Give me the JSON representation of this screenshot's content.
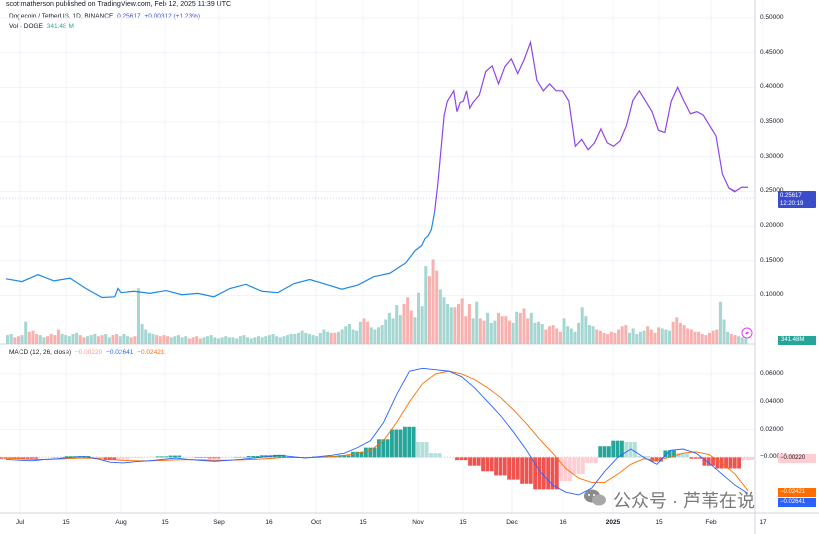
{
  "header": {
    "publisher_line": "scottmatherson published on TradingView.com, Feb 12, 2025 11:39 UTC"
  },
  "legend": {
    "symbol": "Dogecoin / TetherUS, 1D, BINANCE",
    "last": "0.25617",
    "change": "+0.00312 (+1.23%)",
    "volume_label": "Vol · DOGE",
    "volume_value": "341.48 M",
    "macd_label": "MACD (12, 26, close)",
    "macd_hist": "−0.00220",
    "macd_line": "−0.02641",
    "macd_signal": "−0.02421"
  },
  "price_tag": {
    "price": "0.25617",
    "countdown": "12:20:19"
  },
  "volume_tag": "341.48M",
  "macd_tags": {
    "hist": "−0.00220",
    "signal": "−0.02421",
    "macd": "−0.02641"
  },
  "watermark": {
    "text": "公众号 · 芦苇在说",
    "icon": "wechat-icon"
  },
  "colors": {
    "price_up": "#2962ff",
    "price_line_late": "#8f45e8",
    "vol_up": "#26a69a",
    "vol_down": "#ef5350",
    "macd_line": "#2962ff",
    "signal_line": "#ff6d00",
    "hist_up": "#26a69a",
    "hist_down": "#ef5350"
  },
  "chart_data": [
    {
      "type": "line",
      "title": "Dogecoin / TetherUS, 1D, BINANCE",
      "x_tick_labels": [
        "Jul",
        "15",
        "Aug",
        "15",
        "Sep",
        "16",
        "Oct",
        "15",
        "Nov",
        "15",
        "Dec",
        "16",
        "2025",
        "15",
        "Feb",
        "17"
      ],
      "y_tick_labels": [
        "0.10000",
        "0.15000",
        "0.20000",
        "0.25000",
        "0.30000",
        "0.35000",
        "0.40000",
        "0.45000",
        "0.50000"
      ],
      "ylim": [
        0.03,
        0.5
      ],
      "x": [
        0,
        5,
        10,
        15,
        20,
        25,
        30,
        34,
        35,
        36,
        40,
        45,
        50,
        55,
        60,
        65,
        70,
        75,
        80,
        85,
        90,
        95,
        100,
        105,
        110,
        115,
        120,
        125,
        128,
        130,
        131,
        132,
        133,
        134,
        135,
        136,
        137,
        138,
        140,
        141,
        142,
        143,
        144,
        145,
        146,
        148,
        150,
        152,
        154,
        156,
        158,
        160,
        162,
        164,
        166,
        168,
        170,
        172,
        174,
        176,
        178,
        180,
        182,
        184,
        186,
        188,
        190,
        192,
        194,
        196,
        198,
        200,
        202,
        204,
        206,
        208,
        210,
        212,
        214,
        216,
        218,
        220,
        222,
        224,
        226,
        228,
        226,
        228,
        230,
        232
      ],
      "values": [
        0.124,
        0.12,
        0.13,
        0.121,
        0.125,
        0.11,
        0.097,
        0.098,
        0.11,
        0.104,
        0.106,
        0.103,
        0.107,
        0.101,
        0.103,
        0.098,
        0.11,
        0.116,
        0.106,
        0.104,
        0.117,
        0.123,
        0.116,
        0.109,
        0.115,
        0.127,
        0.132,
        0.147,
        0.165,
        0.172,
        0.182,
        0.186,
        0.195,
        0.22,
        0.26,
        0.31,
        0.36,
        0.38,
        0.395,
        0.365,
        0.378,
        0.38,
        0.395,
        0.37,
        0.378,
        0.389,
        0.423,
        0.431,
        0.405,
        0.43,
        0.441,
        0.42,
        0.44,
        0.465,
        0.41,
        0.395,
        0.405,
        0.395,
        0.395,
        0.38,
        0.315,
        0.325,
        0.31,
        0.32,
        0.34,
        0.32,
        0.315,
        0.323,
        0.345,
        0.381,
        0.395,
        0.38,
        0.365,
        0.338,
        0.335,
        0.38,
        0.4,
        0.38,
        0.362,
        0.365,
        0.36,
        0.345,
        0.33,
        0.275,
        0.255,
        0.249,
        0.255,
        0.25,
        0.256,
        0.256
      ]
    },
    {
      "type": "bar",
      "title": "Vol · DOGE",
      "series": [
        {
          "name": "Vol · DOGE",
          "values": [
            0.8,
            0.9,
            0.6,
            0.7,
            0.8,
            2.0,
            1.1,
            1.2,
            0.9,
            0.8,
            0.6,
            0.7,
            0.9,
            0.8,
            1.3,
            0.9,
            0.8,
            0.7,
            0.9,
            1.0,
            0.8,
            0.6,
            0.7,
            0.8,
            0.9,
            0.7,
            0.8,
            0.9,
            0.6,
            0.8,
            0.9,
            0.7,
            0.9,
            0.7,
            0.6,
            0.7,
            5.0,
            1.8,
            1.3,
            1.0,
            0.9,
            0.8,
            0.7,
            0.8,
            0.7,
            0.6,
            0.7,
            0.8,
            0.6,
            0.7,
            0.5,
            0.6,
            0.7,
            0.5,
            0.6,
            0.7,
            0.8,
            0.6,
            0.5,
            0.6,
            0.7,
            0.6,
            0.6,
            0.5,
            0.7,
            0.8,
            0.6,
            0.5,
            0.6,
            0.7,
            0.6,
            0.7,
            0.8,
            0.9,
            0.7,
            0.6,
            0.7,
            0.8,
            0.9,
            0.9,
            1.0,
            1.2,
            1.0,
            0.9,
            0.8,
            0.7,
            1.0,
            1.3,
            1.1,
            1.0,
            1.0,
            1.1,
            1.3,
            1.6,
            1.8,
            1.3,
            1.2,
            2.0,
            2.3,
            2.0,
            1.5,
            1.3,
            1.5,
            1.7,
            2.2,
            2.8,
            2.3,
            3.5,
            2.6,
            3.6,
            4.2,
            3.0,
            2.4,
            4.6,
            3.4,
            7.0,
            6.1,
            7.6,
            6.6,
            4.9,
            4.2,
            3.6,
            3.3,
            3.3,
            3.6,
            4.1,
            2.5,
            3.6,
            2.3,
            3.8,
            2.3,
            2.1,
            2.8,
            1.9,
            2.1,
            2.8,
            2.5,
            2.5,
            2.1,
            1.9,
            2.9,
            2.8,
            3.2,
            2.3,
            2.8,
            1.9,
            2.0,
            1.8,
            1.3,
            1.6,
            1.7,
            1.4,
            1.1,
            2.3,
            1.6,
            1.4,
            1.1,
            1.9,
            3.3,
            2.5,
            1.7,
            1.6,
            1.3,
            1.2,
            1.0,
            0.9,
            1.1,
            1.0,
            1.3,
            1.6,
            1.7,
            1.0,
            1.4,
            0.9,
            1.1,
            1.2,
            1.6,
            1.3,
            1.0,
            1.5,
            1.4,
            1.3,
            1.2,
            2.0,
            2.4,
            1.9,
            1.7,
            1.4,
            1.3,
            1.1,
            1.1,
            0.9,
            0.8,
            1.0,
            1.2,
            1.3,
            3.8,
            2.2,
            1.1,
            0.9,
            0.8,
            0.7,
            0.6,
            0.5
          ]
        }
      ],
      "ylim": [
        0,
        8
      ]
    },
    {
      "type": "line",
      "title": "MACD (12, 26, close)",
      "y_tick_labels": [
        "0.06000",
        "0.04000",
        "0.02000",
        "−0.00000"
      ],
      "ylim": [
        -0.04,
        0.07
      ],
      "series": [
        {
          "name": "MACD",
          "values": [
            -0.0015,
            -0.002,
            -0.0025,
            -0.0015,
            -0.001,
            0.0,
            0.0005,
            -0.001,
            -0.0035,
            -0.004,
            -0.003,
            -0.0025,
            -0.0015,
            -0.0005,
            -0.0015,
            -0.0022,
            -0.0028,
            -0.0022,
            -0.0015,
            -0.0005,
            0.0005,
            0.0015,
            0.0005,
            -0.0005,
            0.0005,
            0.0015,
            0.003,
            0.007,
            0.012,
            0.025,
            0.045,
            0.062,
            0.064,
            0.063,
            0.062,
            0.058,
            0.05,
            0.04,
            0.03,
            0.018,
            0.005,
            -0.01,
            -0.02,
            -0.025,
            -0.027,
            -0.022,
            -0.01,
            0.0,
            0.006,
            0.0,
            -0.005,
            0.005,
            0.006,
            0.003,
            -0.004,
            -0.012,
            -0.02,
            -0.026
          ]
        },
        {
          "name": "Signal",
          "values": [
            -0.0005,
            -0.001,
            -0.0015,
            -0.0015,
            -0.0012,
            -0.0008,
            -0.0005,
            -0.0008,
            -0.0015,
            -0.0022,
            -0.0025,
            -0.0025,
            -0.0022,
            -0.0018,
            -0.0017,
            -0.0018,
            -0.002,
            -0.002,
            -0.0018,
            -0.0015,
            -0.001,
            -0.0003,
            0.0,
            -0.0002,
            0.0,
            0.0005,
            0.0015,
            0.003,
            0.005,
            0.012,
            0.025,
            0.04,
            0.053,
            0.06,
            0.062,
            0.06,
            0.056,
            0.05,
            0.043,
            0.034,
            0.024,
            0.013,
            0.003,
            -0.008,
            -0.015,
            -0.018,
            -0.018,
            -0.012,
            -0.005,
            -0.001,
            -0.002,
            0.0,
            0.003,
            0.004,
            0.002,
            -0.004,
            -0.012,
            -0.024
          ]
        }
      ]
    }
  ]
}
